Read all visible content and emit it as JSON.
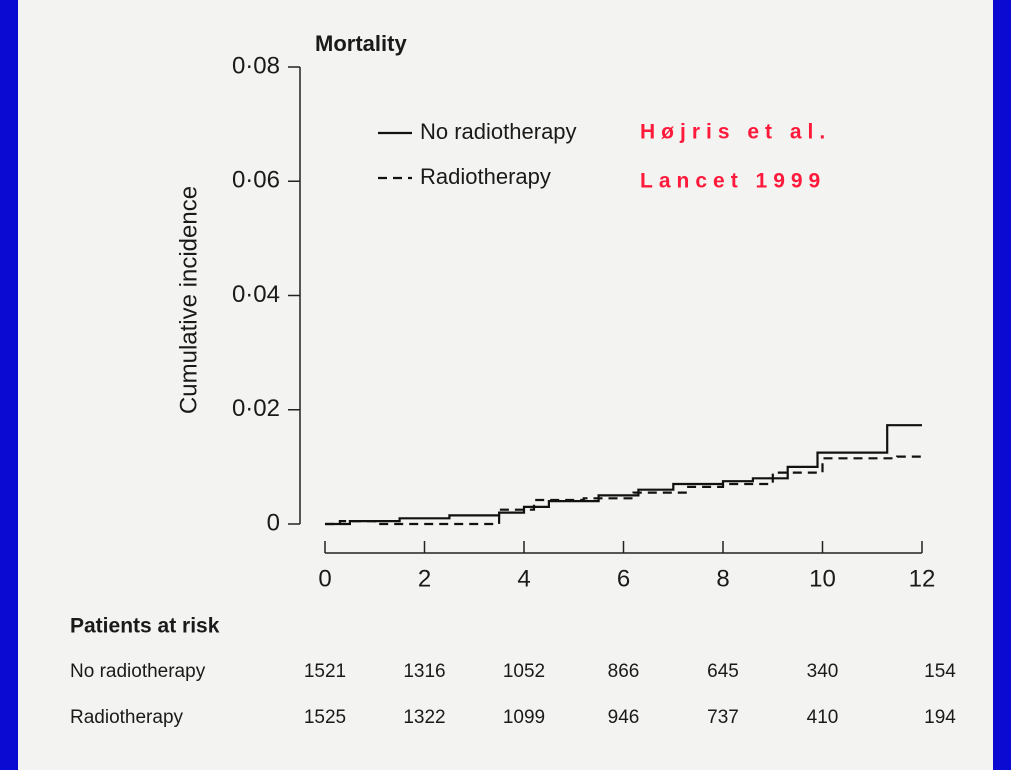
{
  "chart_data": {
    "type": "line",
    "step": "post",
    "title": "Mortality",
    "y_label": "Cumulative incidence",
    "annotations": [
      "Højris et al.",
      "Lancet 1999"
    ],
    "annotation_color": "#ff1a3c",
    "xlim": [
      0,
      12
    ],
    "xticks": [
      0,
      2,
      4,
      6,
      8,
      10,
      12
    ],
    "ylim": [
      0,
      0.08
    ],
    "yticks": [
      {
        "value": 0,
        "label": "0"
      },
      {
        "value": 0.02,
        "label": "0·02"
      },
      {
        "value": 0.04,
        "label": "0·04"
      },
      {
        "value": 0.06,
        "label": "0·06"
      },
      {
        "value": 0.08,
        "label": "0·08"
      }
    ],
    "series": [
      {
        "name": "No radiotherapy",
        "color": "#111111",
        "dash": false,
        "x": [
          0,
          0.5,
          1.5,
          2.5,
          3.5,
          4,
          4.5,
          5.5,
          6.3,
          7,
          8,
          8.6,
          9.3,
          9.9,
          11.3,
          12
        ],
        "values": [
          0,
          0.0005,
          0.001,
          0.0015,
          0.002,
          0.003,
          0.004,
          0.005,
          0.006,
          0.007,
          0.0075,
          0.008,
          0.01,
          0.0125,
          0.0173,
          0.0173
        ]
      },
      {
        "name": "Radiotherapy",
        "color": "#111111",
        "dash": true,
        "x": [
          0,
          0.3,
          1,
          2.2,
          3.5,
          4.2,
          5.2,
          6.2,
          7.3,
          8,
          9,
          10,
          11.5,
          12
        ],
        "values": [
          0,
          0.0005,
          0,
          0,
          0.0025,
          0.0042,
          0.0045,
          0.0055,
          0.0065,
          0.007,
          0.009,
          0.0115,
          0.0118,
          0.0118
        ]
      }
    ],
    "at_risk": {
      "title": "Patients at risk",
      "rows": [
        {
          "name": "No radiotherapy",
          "values": [
            1521,
            1316,
            1052,
            866,
            645,
            340,
            154
          ]
        },
        {
          "name": "Radiotherapy",
          "values": [
            1525,
            1322,
            1099,
            946,
            737,
            410,
            194
          ]
        }
      ]
    }
  }
}
